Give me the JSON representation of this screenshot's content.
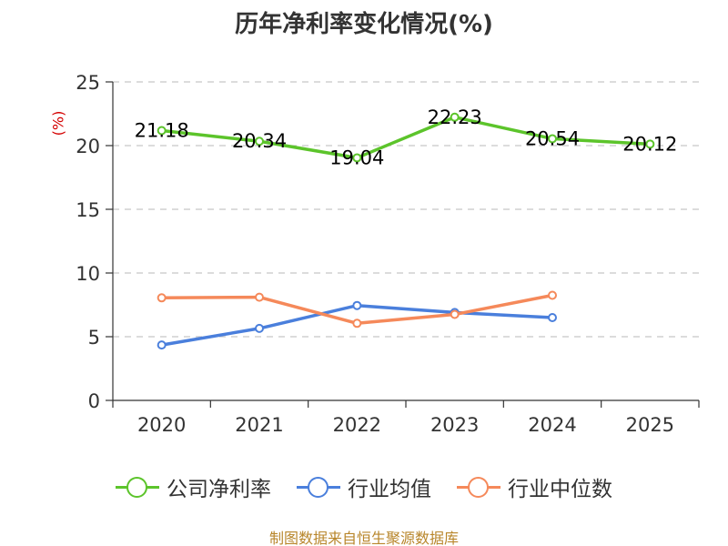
{
  "chart_data": {
    "type": "line",
    "title": "历年净利率变化情况(%)",
    "ylabel": "(%)",
    "xlabel": "",
    "categories": [
      "2020",
      "2021",
      "2022",
      "2023",
      "2024",
      "2025"
    ],
    "ylim": [
      0,
      25
    ],
    "yticks": [
      0,
      5,
      10,
      15,
      20,
      25
    ],
    "grid": true,
    "legend_position": "bottom",
    "series": [
      {
        "name": "公司净利率",
        "color": "#5cc42b",
        "values": [
          21.18,
          20.34,
          19.04,
          22.23,
          20.54,
          20.12
        ],
        "labels": [
          "21.18",
          "20.34",
          "19.04",
          "22.23",
          "20.54",
          "20.12"
        ]
      },
      {
        "name": "行业均值",
        "color": "#4a7fdc",
        "values": [
          4.35,
          5.65,
          7.45,
          6.9,
          6.5,
          null
        ]
      },
      {
        "name": "行业中位数",
        "color": "#f5895a",
        "values": [
          8.05,
          8.1,
          6.05,
          6.75,
          8.25,
          null
        ]
      }
    ]
  },
  "source_text": "制图数据来自恒生聚源数据库"
}
